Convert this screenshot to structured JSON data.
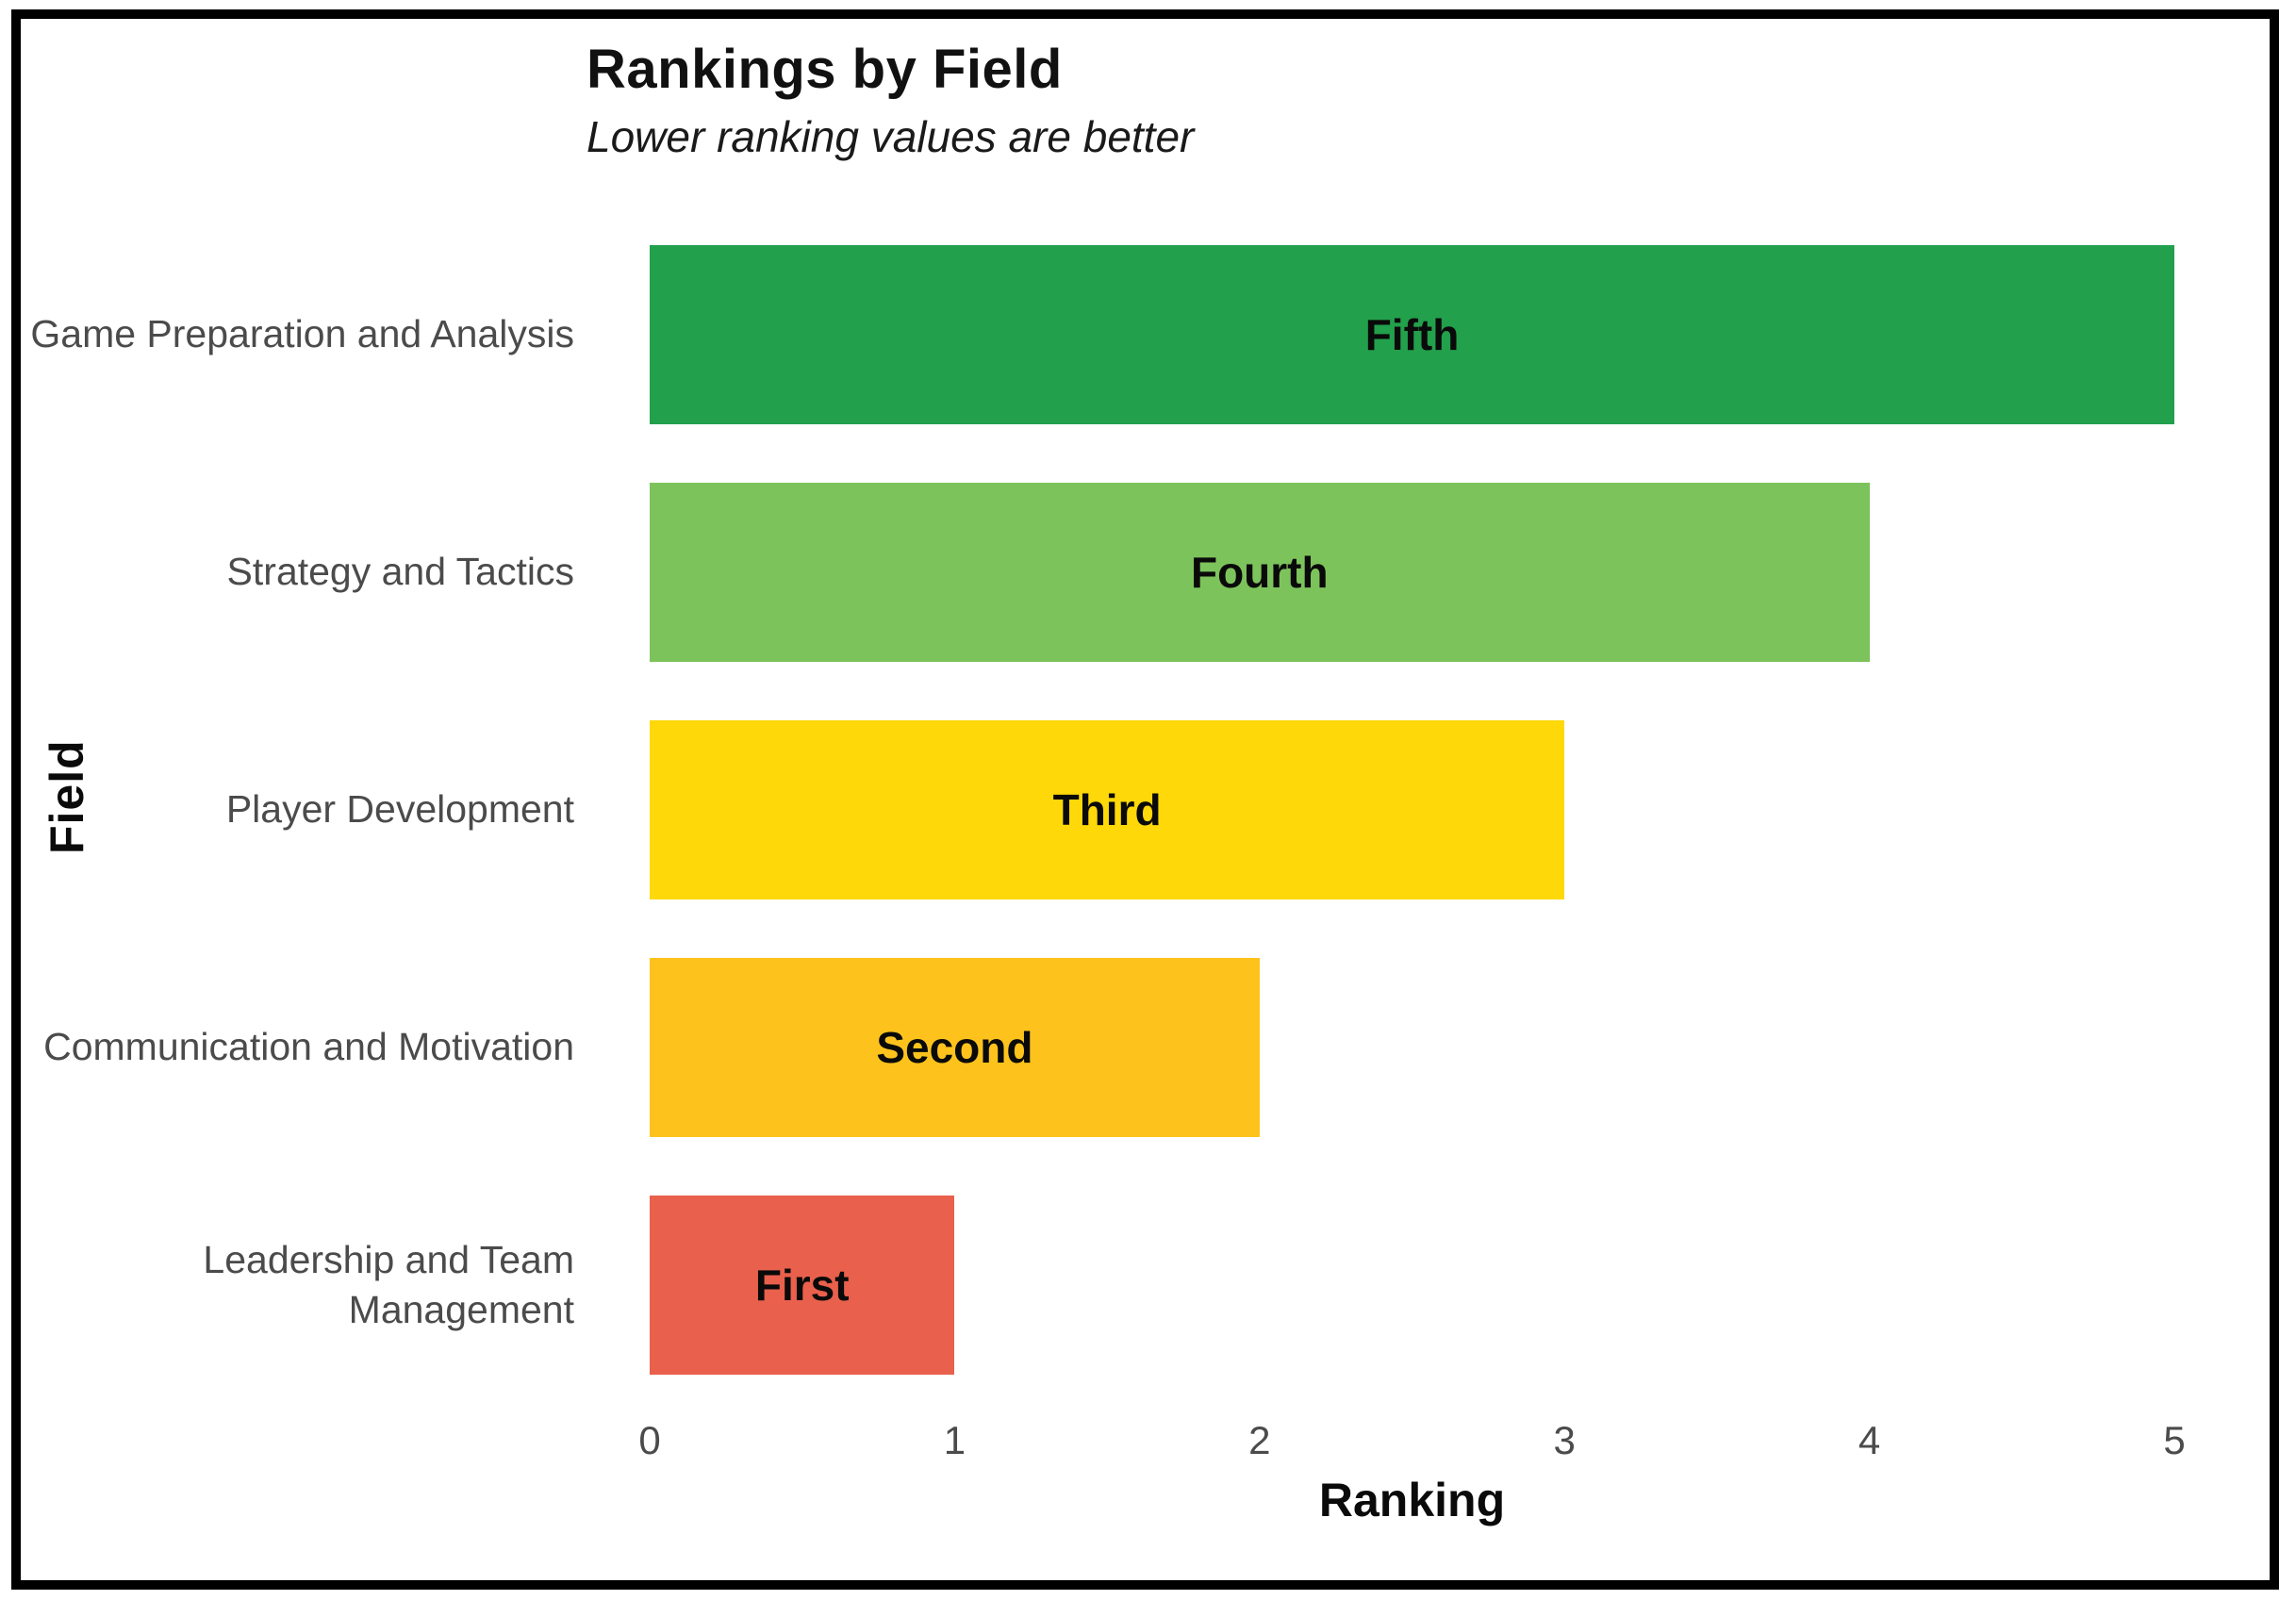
{
  "chart_data": {
    "type": "bar",
    "orientation": "horizontal",
    "title": "Rankings by Field",
    "subtitle": "Lower ranking values are better",
    "xlabel": "Ranking",
    "ylabel": "Field",
    "xlim": [
      0,
      5
    ],
    "x_ticks": [
      "0",
      "1",
      "2",
      "3",
      "4",
      "5"
    ],
    "grid": false,
    "legend": false,
    "categories": [
      "Game Preparation and Analysis",
      "Strategy and Tactics",
      "Player Development",
      "Communication and Motivation",
      "Leadership and Team Management"
    ],
    "values": [
      5,
      4,
      3,
      2,
      1
    ],
    "bar_labels": [
      "Fifth",
      "Fourth",
      "Third",
      "Second",
      "First"
    ],
    "bar_colors": [
      "#22a04c",
      "#7dc35c",
      "#fed808",
      "#fdc31c",
      "#e9604c"
    ]
  }
}
